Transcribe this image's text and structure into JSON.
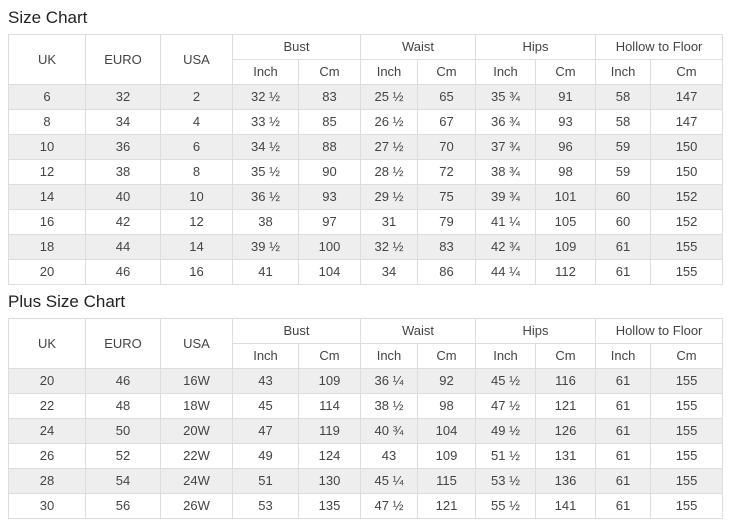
{
  "colors": {
    "border": "#dddddd",
    "stripe": "#eeeeee",
    "text": "#444444",
    "title_text": "#222222",
    "background": "#ffffff"
  },
  "chart_data": [
    {
      "type": "table",
      "title": "Size Chart",
      "header": {
        "simple": [
          "UK",
          "EURO",
          "USA"
        ],
        "groups": [
          {
            "label": "Bust",
            "sub": [
              "Inch",
              "Cm"
            ]
          },
          {
            "label": "Waist",
            "sub": [
              "Inch",
              "Cm"
            ]
          },
          {
            "label": "Hips",
            "sub": [
              "Inch",
              "Cm"
            ]
          },
          {
            "label": "Hollow to Floor",
            "sub": [
              "Inch",
              "Cm"
            ]
          }
        ]
      },
      "rows": [
        [
          "6",
          "32",
          "2",
          "32 ½",
          "83",
          "25 ½",
          "65",
          "35 ¾",
          "91",
          "58",
          "147"
        ],
        [
          "8",
          "34",
          "4",
          "33 ½",
          "85",
          "26 ½",
          "67",
          "36 ¾",
          "93",
          "58",
          "147"
        ],
        [
          "10",
          "36",
          "6",
          "34 ½",
          "88",
          "27 ½",
          "70",
          "37 ¾",
          "96",
          "59",
          "150"
        ],
        [
          "12",
          "38",
          "8",
          "35 ½",
          "90",
          "28 ½",
          "72",
          "38 ¾",
          "98",
          "59",
          "150"
        ],
        [
          "14",
          "40",
          "10",
          "36 ½",
          "93",
          "29 ½",
          "75",
          "39 ¾",
          "101",
          "60",
          "152"
        ],
        [
          "16",
          "42",
          "12",
          "38",
          "97",
          "31",
          "79",
          "41 ¼",
          "105",
          "60",
          "152"
        ],
        [
          "18",
          "44",
          "14",
          "39 ½",
          "100",
          "32 ½",
          "83",
          "42 ¾",
          "109",
          "61",
          "155"
        ],
        [
          "20",
          "46",
          "16",
          "41",
          "104",
          "34",
          "86",
          "44 ¼",
          "112",
          "61",
          "155"
        ]
      ]
    },
    {
      "type": "table",
      "title": "Plus Size Chart",
      "header": {
        "simple": [
          "UK",
          "EURO",
          "USA"
        ],
        "groups": [
          {
            "label": "Bust",
            "sub": [
              "Inch",
              "Cm"
            ]
          },
          {
            "label": "Waist",
            "sub": [
              "Inch",
              "Cm"
            ]
          },
          {
            "label": "Hips",
            "sub": [
              "Inch",
              "Cm"
            ]
          },
          {
            "label": "Hollow to Floor",
            "sub": [
              "Inch",
              "Cm"
            ]
          }
        ]
      },
      "rows": [
        [
          "20",
          "46",
          "16W",
          "43",
          "109",
          "36 ¼",
          "92",
          "45 ½",
          "116",
          "61",
          "155"
        ],
        [
          "22",
          "48",
          "18W",
          "45",
          "114",
          "38 ½",
          "98",
          "47 ½",
          "121",
          "61",
          "155"
        ],
        [
          "24",
          "50",
          "20W",
          "47",
          "119",
          "40 ¾",
          "104",
          "49 ½",
          "126",
          "61",
          "155"
        ],
        [
          "26",
          "52",
          "22W",
          "49",
          "124",
          "43",
          "109",
          "51 ½",
          "131",
          "61",
          "155"
        ],
        [
          "28",
          "54",
          "24W",
          "51",
          "130",
          "45 ¼",
          "115",
          "53 ½",
          "136",
          "61",
          "155"
        ],
        [
          "30",
          "56",
          "26W",
          "53",
          "135",
          "47 ½",
          "121",
          "55 ½",
          "141",
          "61",
          "155"
        ]
      ]
    }
  ]
}
